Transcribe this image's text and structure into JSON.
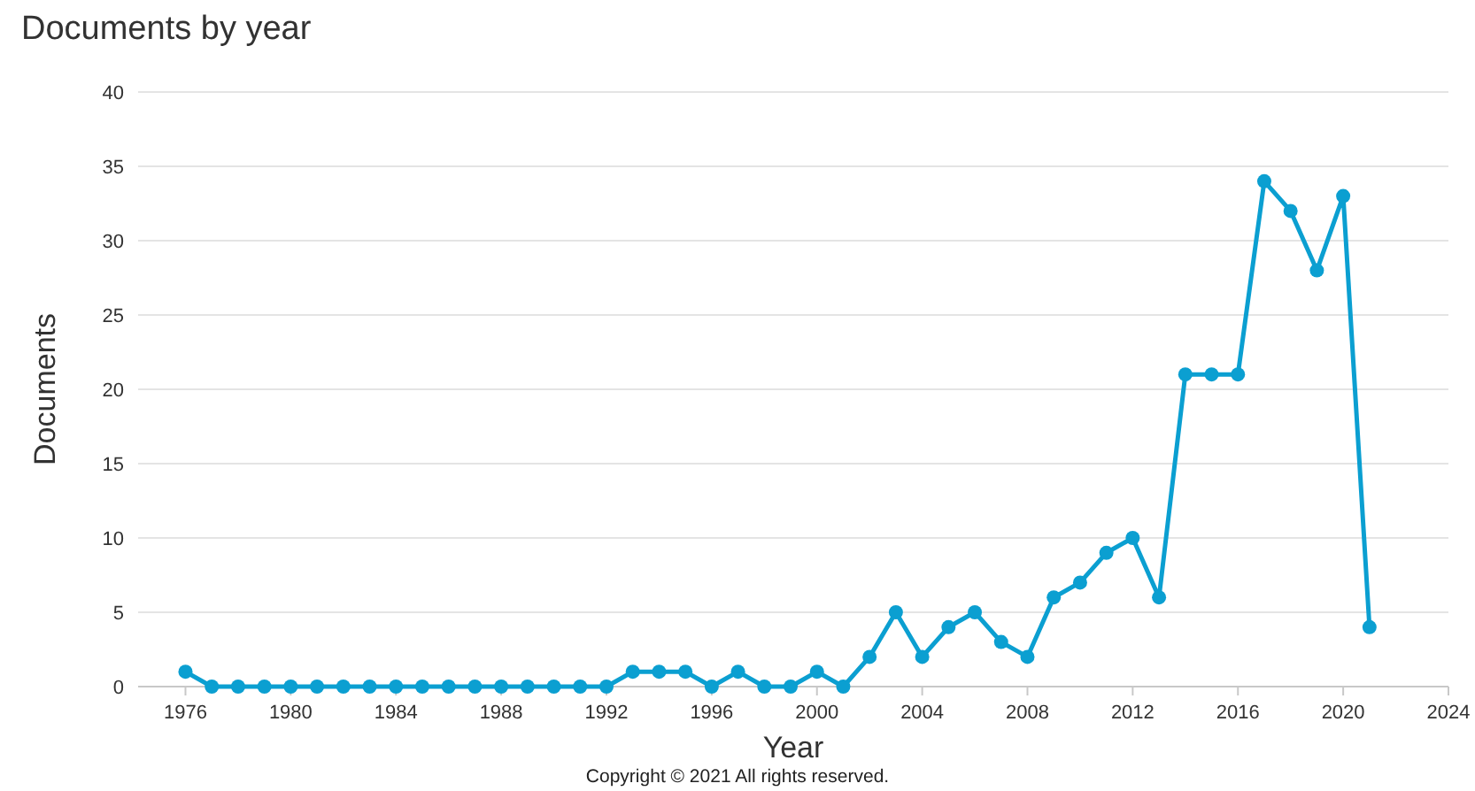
{
  "chart_data": {
    "type": "line",
    "title": "Documents by year",
    "xlabel": "Year",
    "ylabel": "Documents",
    "x": [
      1976,
      1977,
      1978,
      1979,
      1980,
      1981,
      1982,
      1983,
      1984,
      1985,
      1986,
      1987,
      1988,
      1989,
      1990,
      1991,
      1992,
      1993,
      1994,
      1995,
      1996,
      1997,
      1998,
      1999,
      2000,
      2001,
      2002,
      2003,
      2004,
      2005,
      2006,
      2007,
      2008,
      2009,
      2010,
      2011,
      2012,
      2013,
      2014,
      2015,
      2016,
      2017,
      2018,
      2019,
      2020,
      2021
    ],
    "series": [
      {
        "color": "#0b9fd1",
        "values": [
          1,
          0,
          0,
          0,
          0,
          0,
          0,
          0,
          0,
          0,
          0,
          0,
          0,
          0,
          0,
          0,
          0,
          1,
          1,
          1,
          0,
          1,
          0,
          0,
          1,
          0,
          2,
          5,
          2,
          4,
          5,
          3,
          2,
          6,
          7,
          9,
          10,
          6,
          21,
          21,
          21,
          34,
          32,
          28,
          33,
          4
        ]
      }
    ],
    "xlim": [
      1974.2,
      2024
    ],
    "xticks": [
      1976,
      1980,
      1984,
      1988,
      1992,
      1996,
      2000,
      2004,
      2008,
      2012,
      2016,
      2020,
      2024
    ],
    "ylim": [
      0,
      40
    ],
    "yticks": [
      0,
      5,
      10,
      15,
      20,
      25,
      30,
      35,
      40
    ],
    "grid": "y",
    "marker": "circle",
    "line_style": "solid",
    "annotations": [
      "Copyright © 2021 All rights reserved."
    ]
  }
}
